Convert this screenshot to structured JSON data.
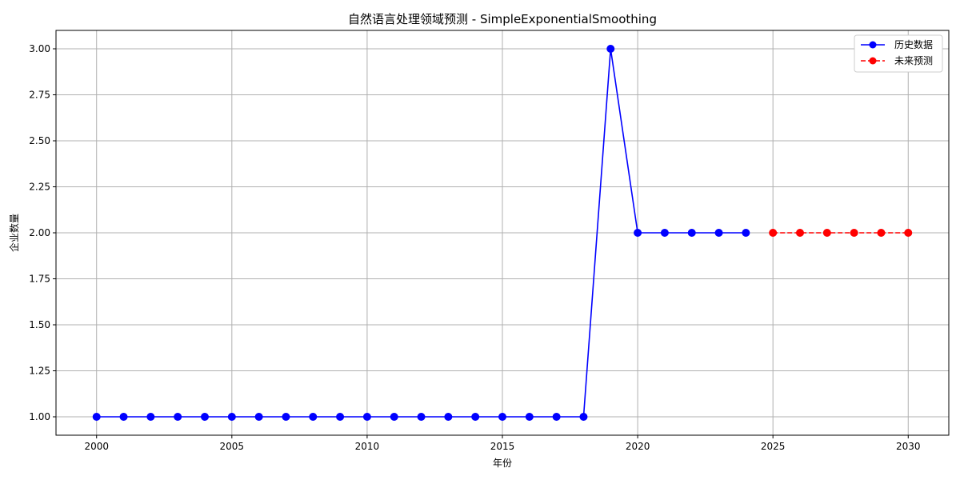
{
  "chart_data": {
    "type": "line",
    "title": "自然语言处理领域预测 - SimpleExponentialSmoothing",
    "xlabel": "年份",
    "ylabel": "企业数量",
    "xlim": [
      1998.5,
      2031.5
    ],
    "ylim": [
      0.9,
      3.1
    ],
    "x_ticks": [
      2000,
      2005,
      2010,
      2015,
      2020,
      2025,
      2030
    ],
    "y_ticks": [
      1.0,
      1.25,
      1.5,
      1.75,
      2.0,
      2.25,
      2.5,
      2.75,
      3.0
    ],
    "x_tick_labels": [
      "2000",
      "2005",
      "2010",
      "2015",
      "2020",
      "2025",
      "2030"
    ],
    "y_tick_labels": [
      "1.00",
      "1.25",
      "1.50",
      "1.75",
      "2.00",
      "2.25",
      "2.50",
      "2.75",
      "3.00"
    ],
    "grid": true,
    "legend_position": "top-right",
    "series": [
      {
        "name": "历史数据",
        "color": "#0000ff",
        "line_style": "solid",
        "marker": "circle",
        "x": [
          2000,
          2001,
          2002,
          2003,
          2004,
          2005,
          2006,
          2007,
          2008,
          2009,
          2010,
          2011,
          2012,
          2013,
          2014,
          2015,
          2016,
          2017,
          2018,
          2019,
          2020,
          2021,
          2022,
          2023,
          2024
        ],
        "y": [
          1,
          1,
          1,
          1,
          1,
          1,
          1,
          1,
          1,
          1,
          1,
          1,
          1,
          1,
          1,
          1,
          1,
          1,
          1,
          3,
          2,
          2,
          2,
          2,
          2
        ]
      },
      {
        "name": "未来预测",
        "color": "#ff0000",
        "line_style": "dashed",
        "marker": "circle",
        "x": [
          2025,
          2026,
          2027,
          2028,
          2029,
          2030
        ],
        "y": [
          2,
          2,
          2,
          2,
          2,
          2
        ]
      }
    ]
  }
}
